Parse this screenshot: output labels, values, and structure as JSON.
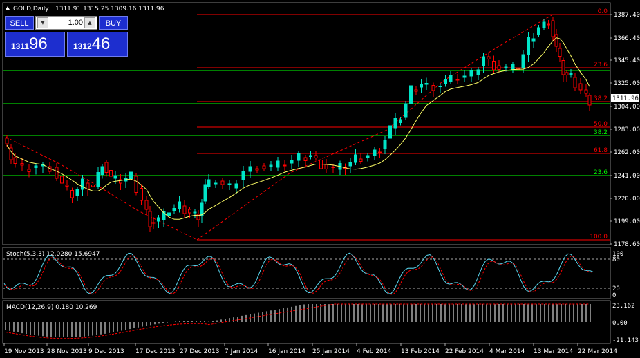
{
  "header": {
    "symbol_label": "GOLD,Daily",
    "ohlc": "1311.91 1315.25 1309.16 1311.96"
  },
  "trade_panel": {
    "sell_label": "SELL",
    "buy_label": "BUY",
    "lot": "1.00",
    "bid_small": "1311",
    "bid_large": "96",
    "ask_small": "1312",
    "ask_large": "46"
  },
  "price_axis": [
    "1387.40",
    "1366.40",
    "1345.40",
    "1325.00",
    "1304.00",
    "1283.00",
    "1262.00",
    "1241.00",
    "1220.00",
    "1199.00",
    "1178.60"
  ],
  "current_price": "1311.96",
  "fibo_levels": [
    {
      "label": "0.0",
      "color": "#ff0000"
    },
    {
      "label": "23.6",
      "color": "#ff0000"
    },
    {
      "label": "38.2",
      "color": "#ff0000"
    },
    {
      "label": "50.0",
      "color": "#ff0000"
    },
    {
      "label": "61.8",
      "color": "#ff0000"
    },
    {
      "label": "100.0",
      "color": "#ff0000"
    }
  ],
  "green_levels": [
    {
      "label": "38.2",
      "color": "#00ff00"
    },
    {
      "label": "23.6",
      "color": "#00ff00"
    }
  ],
  "stoch": {
    "label": "Stoch(5,3,3) 12.0280 15.6947",
    "axis": [
      "100",
      "80",
      "20",
      "0"
    ]
  },
  "macd": {
    "label": "MACD(12,26,9) 0.180 10.269",
    "axis": [
      "23.162",
      "0.00",
      "-21.143"
    ]
  },
  "time_axis": [
    "19 Nov 2013",
    "28 Nov 2013",
    "9 Dec 2013",
    "17 Dec 2013",
    "27 Dec 2013",
    "7 Jan 2014",
    "16 Jan 2014",
    "25 Jan 2014",
    "4 Feb 2014",
    "13 Feb 2014",
    "22 Feb 2014",
    "4 Mar 2014",
    "13 Mar 2014",
    "22 Mar 2014"
  ],
  "colors": {
    "bull": "#00e5c8",
    "bear": "#ff0000",
    "ma": "#ffff66",
    "grid": "#5a5a5a",
    "fibo": "#ff0000",
    "support": "#00ff00",
    "axis_text": "#ffffff"
  }
}
